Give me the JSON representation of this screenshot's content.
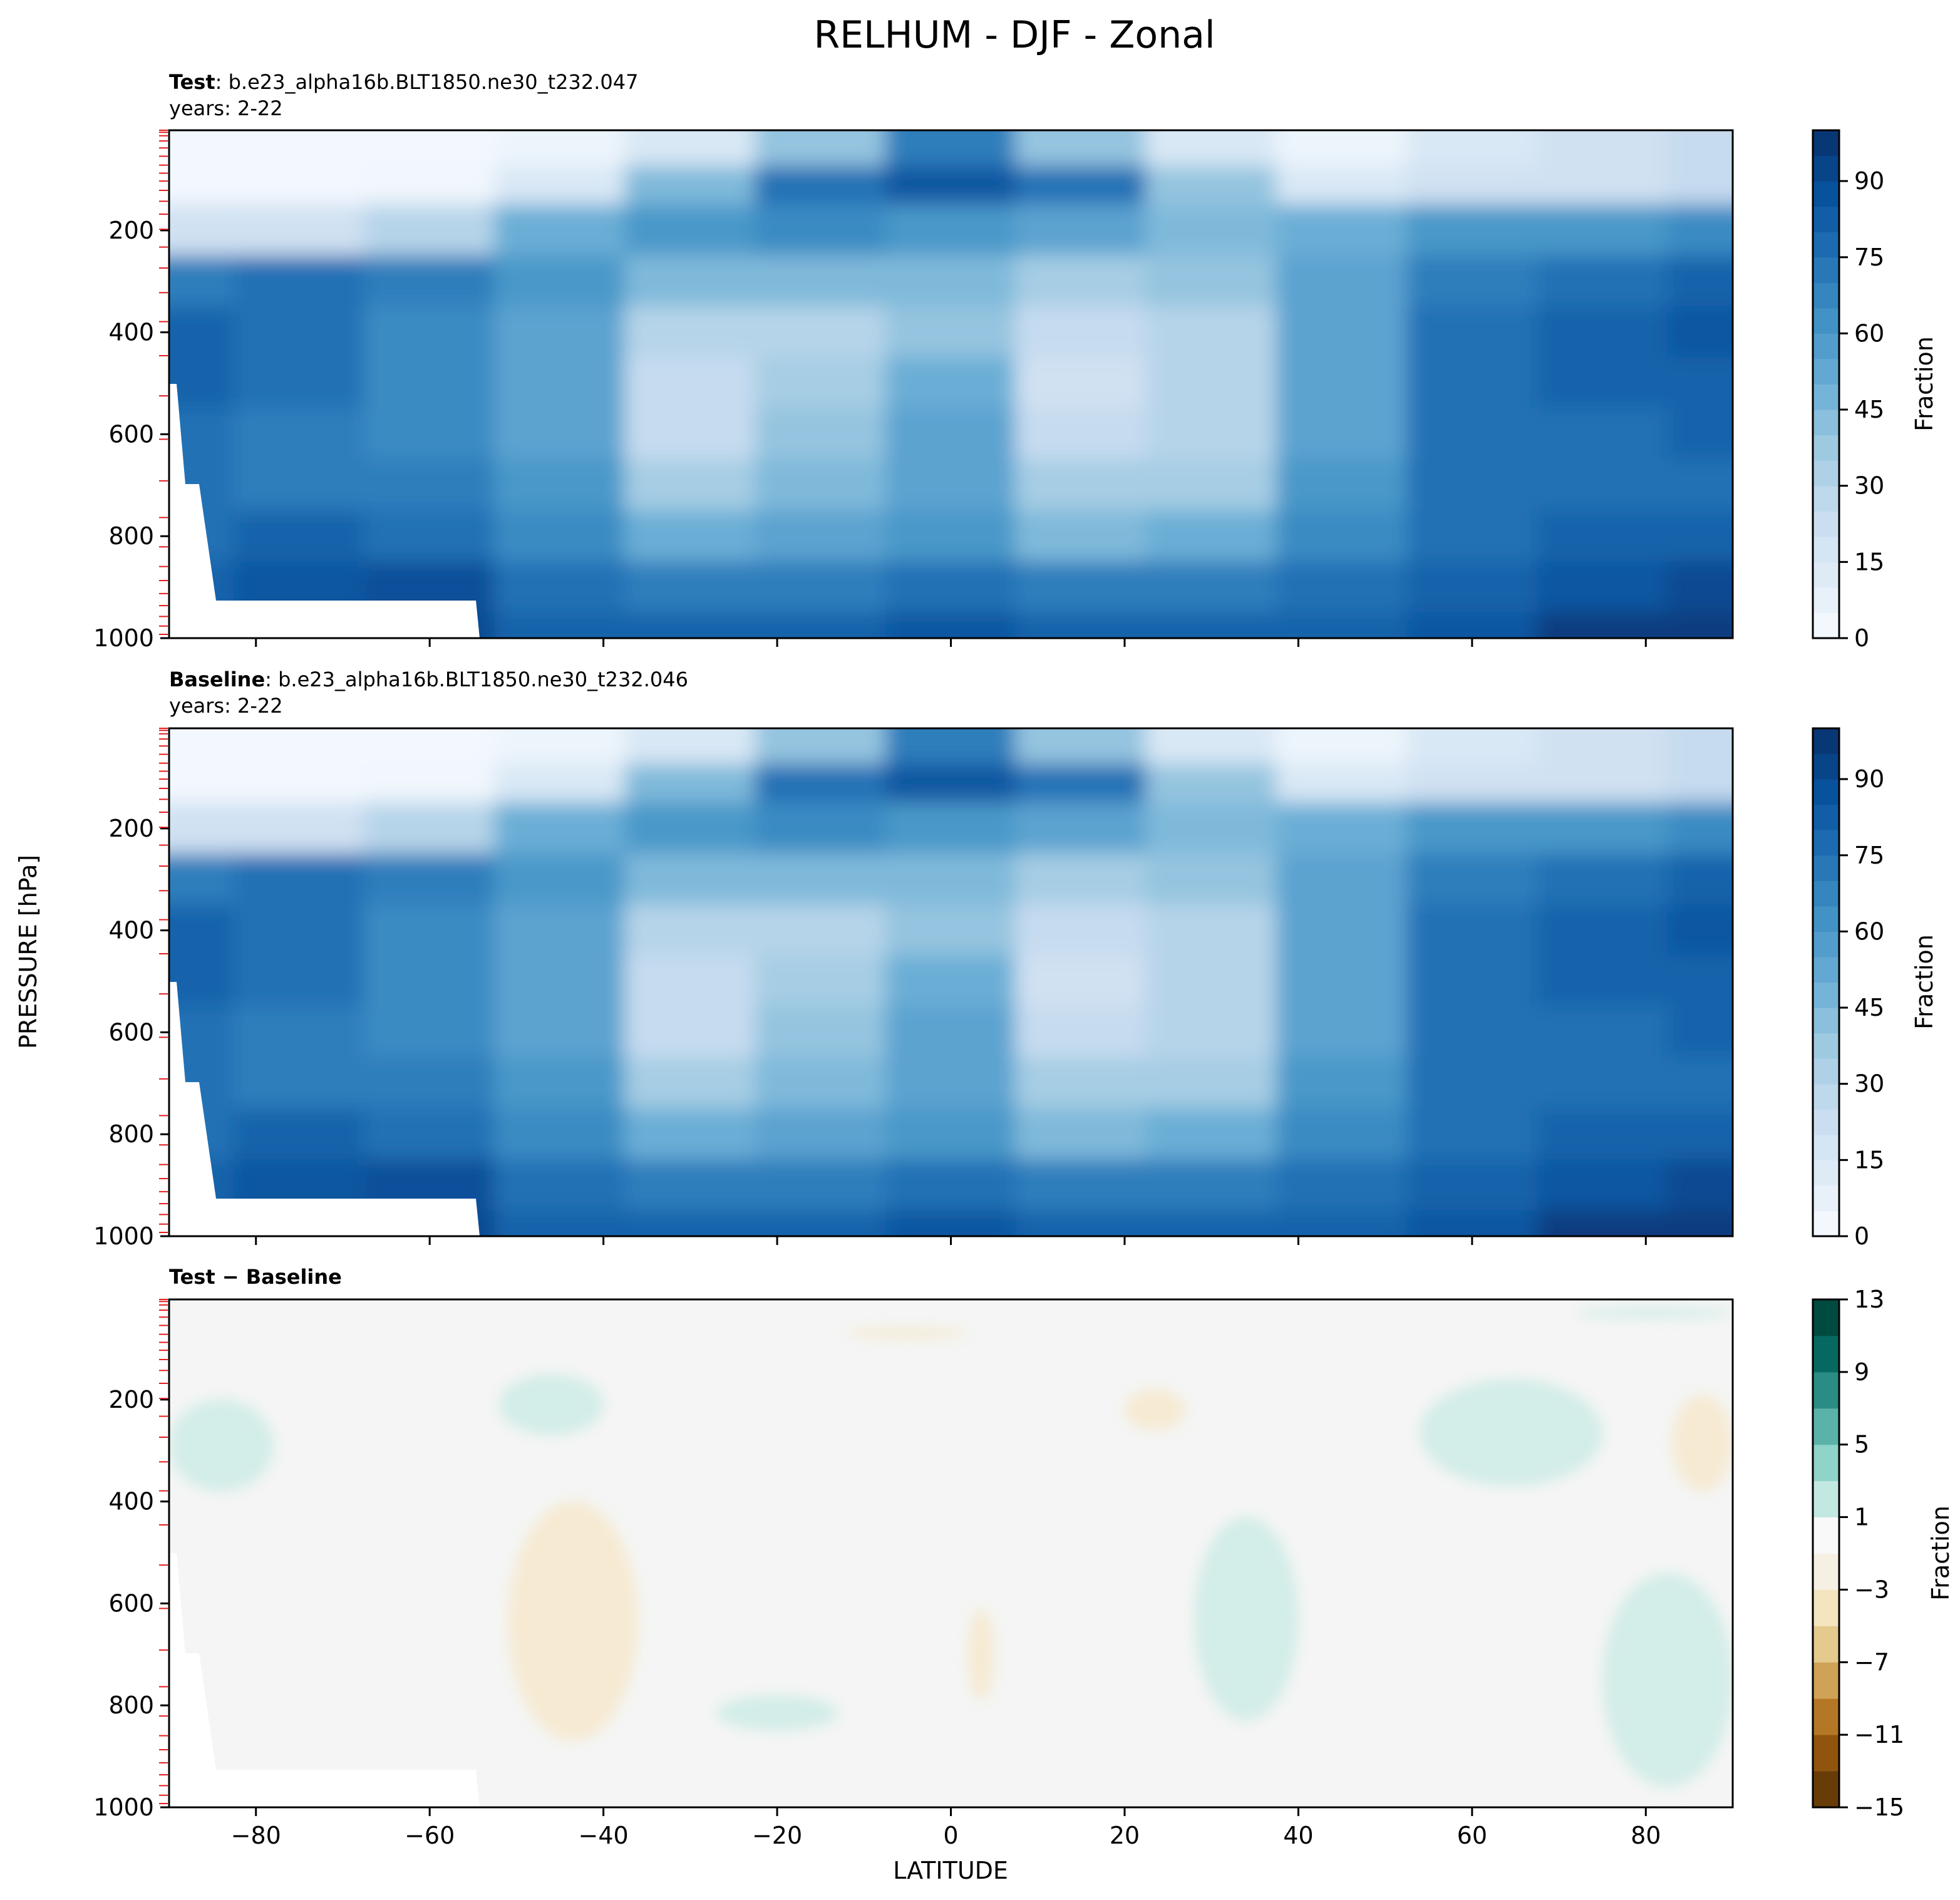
{
  "figure": {
    "title": "RELHUM - DJF - Zonal",
    "xlabel": "LATITUDE",
    "ylabel": "PRESSURE [hPa]"
  },
  "chart_data": [
    {
      "type": "heatmap",
      "panel": "test",
      "title_bold": "Test",
      "title_rest": ": b.e23_alpha16b.BLT1850.ne30_t232.047",
      "subtitle": "years: 2-22",
      "xlim": [
        -90,
        90
      ],
      "ylim": [
        1000,
        3.6
      ],
      "y_inverted": true,
      "xticks": [
        -80,
        -60,
        -40,
        -20,
        0,
        20,
        40,
        60,
        80
      ],
      "yticks": [
        200,
        400,
        600,
        800,
        1000
      ],
      "x_tick_labels_shown": false,
      "colormap": "Blues",
      "colorbar": {
        "label": "Fraction",
        "levels_min": 0,
        "levels_max": 100,
        "step": 5,
        "ticks": [
          0,
          15,
          30,
          45,
          60,
          75,
          90
        ]
      },
      "field_estimate": {
        "latitudes": [
          -90,
          -75,
          -60,
          -45,
          -30,
          -15,
          0,
          15,
          30,
          45,
          60,
          75,
          90
        ],
        "pressures": [
          50,
          100,
          200,
          300,
          400,
          500,
          600,
          700,
          800,
          900,
          1000
        ],
        "values": [
          [
            2,
            2,
            2,
            5,
            15,
            40,
            70,
            40,
            15,
            5,
            15,
            20,
            25
          ],
          [
            2,
            2,
            3,
            15,
            45,
            75,
            85,
            75,
            40,
            15,
            20,
            20,
            25
          ],
          [
            20,
            20,
            30,
            50,
            60,
            65,
            60,
            55,
            45,
            50,
            60,
            60,
            65
          ],
          [
            70,
            75,
            70,
            60,
            45,
            45,
            45,
            35,
            40,
            55,
            70,
            75,
            80
          ],
          [
            80,
            75,
            65,
            55,
            30,
            30,
            40,
            25,
            30,
            55,
            75,
            80,
            85
          ],
          [
            80,
            75,
            65,
            55,
            25,
            35,
            50,
            20,
            30,
            55,
            75,
            80,
            80
          ],
          [
            75,
            70,
            65,
            55,
            25,
            40,
            55,
            25,
            30,
            55,
            75,
            75,
            80
          ],
          [
            75,
            70,
            70,
            60,
            35,
            45,
            55,
            35,
            35,
            60,
            75,
            75,
            75
          ],
          [
            75,
            80,
            75,
            65,
            50,
            55,
            60,
            45,
            50,
            65,
            75,
            80,
            80
          ],
          [
            80,
            85,
            88,
            75,
            70,
            70,
            75,
            70,
            70,
            75,
            80,
            85,
            90
          ],
          [
            85,
            90,
            90,
            80,
            80,
            80,
            85,
            80,
            80,
            80,
            85,
            95,
            95
          ]
        ]
      }
    },
    {
      "type": "heatmap",
      "panel": "baseline",
      "title_bold": "Baseline",
      "title_rest": ": b.e23_alpha16b.BLT1850.ne30_t232.046",
      "subtitle": "years: 2-22",
      "xlim": [
        -90,
        90
      ],
      "ylim": [
        1000,
        3.6
      ],
      "y_inverted": true,
      "xticks": [
        -80,
        -60,
        -40,
        -20,
        0,
        20,
        40,
        60,
        80
      ],
      "yticks": [
        200,
        400,
        600,
        800,
        1000
      ],
      "x_tick_labels_shown": false,
      "colormap": "Blues",
      "colorbar": {
        "label": "Fraction",
        "levels_min": 0,
        "levels_max": 100,
        "step": 5,
        "ticks": [
          0,
          15,
          30,
          45,
          60,
          75,
          90
        ]
      },
      "field_estimate": {
        "latitudes": [
          -90,
          -75,
          -60,
          -45,
          -30,
          -15,
          0,
          15,
          30,
          45,
          60,
          75,
          90
        ],
        "pressures": [
          50,
          100,
          200,
          300,
          400,
          500,
          600,
          700,
          800,
          900,
          1000
        ],
        "values": [
          [
            2,
            2,
            2,
            5,
            15,
            40,
            70,
            40,
            15,
            5,
            15,
            20,
            25
          ],
          [
            2,
            2,
            3,
            15,
            45,
            75,
            85,
            75,
            40,
            15,
            20,
            20,
            25
          ],
          [
            20,
            20,
            30,
            50,
            60,
            65,
            60,
            55,
            45,
            50,
            60,
            60,
            65
          ],
          [
            70,
            75,
            70,
            60,
            45,
            45,
            45,
            35,
            40,
            55,
            70,
            75,
            80
          ],
          [
            80,
            75,
            65,
            55,
            30,
            30,
            40,
            25,
            30,
            55,
            75,
            80,
            85
          ],
          [
            80,
            75,
            65,
            55,
            25,
            35,
            50,
            20,
            30,
            55,
            75,
            80,
            80
          ],
          [
            75,
            70,
            65,
            55,
            25,
            40,
            55,
            25,
            30,
            55,
            75,
            75,
            80
          ],
          [
            75,
            70,
            70,
            60,
            35,
            45,
            55,
            35,
            35,
            60,
            75,
            75,
            75
          ],
          [
            75,
            80,
            75,
            65,
            50,
            55,
            60,
            45,
            50,
            65,
            75,
            80,
            80
          ],
          [
            80,
            85,
            88,
            75,
            70,
            70,
            75,
            70,
            70,
            75,
            80,
            85,
            90
          ],
          [
            85,
            90,
            90,
            80,
            80,
            80,
            85,
            80,
            80,
            80,
            85,
            95,
            95
          ]
        ]
      }
    },
    {
      "type": "heatmap",
      "panel": "difference",
      "title_bold": "Test − Baseline",
      "title_rest": "",
      "subtitle": "",
      "xlim": [
        -90,
        90
      ],
      "ylim": [
        1000,
        3.6
      ],
      "y_inverted": true,
      "xticks": [
        -80,
        -60,
        -40,
        -20,
        0,
        20,
        40,
        60,
        80
      ],
      "yticks": [
        200,
        400,
        600,
        800,
        1000
      ],
      "x_tick_labels_shown": true,
      "colormap": "BrBG",
      "colorbar": {
        "label": "Fraction",
        "levels_min": -15,
        "levels_max": 13,
        "step": 2,
        "ticks": [
          -15,
          -11,
          -7,
          -3,
          1,
          5,
          9,
          13
        ]
      },
      "neutral_range": [
        -1,
        1
      ],
      "anomaly_regions": [
        {
          "sign": "positive",
          "lat_range": [
            -90,
            -78
          ],
          "p_range": [
            200,
            380
          ]
        },
        {
          "sign": "positive",
          "lat_range": [
            -52,
            -40
          ],
          "p_range": [
            150,
            270
          ]
        },
        {
          "sign": "positive",
          "lat_range": [
            -27,
            -13
          ],
          "p_range": [
            780,
            850
          ]
        },
        {
          "sign": "positive",
          "lat_range": [
            28,
            40
          ],
          "p_range": [
            430,
            830
          ]
        },
        {
          "sign": "positive",
          "lat_range": [
            54,
            75
          ],
          "p_range": [
            160,
            370
          ]
        },
        {
          "sign": "positive",
          "lat_range": [
            75,
            90
          ],
          "p_range": [
            540,
            960
          ]
        },
        {
          "sign": "positive",
          "lat_range": [
            72,
            90
          ],
          "p_range": [
            20,
            40
          ]
        },
        {
          "sign": "negative",
          "lat_range": [
            -51,
            -36
          ],
          "p_range": [
            400,
            870
          ]
        },
        {
          "sign": "negative",
          "lat_range": [
            2,
            5
          ],
          "p_range": [
            610,
            790
          ]
        },
        {
          "sign": "negative",
          "lat_range": [
            -12,
            2
          ],
          "p_range": [
            60,
            80
          ]
        },
        {
          "sign": "negative",
          "lat_range": [
            20,
            27
          ],
          "p_range": [
            180,
            260
          ]
        },
        {
          "sign": "negative",
          "lat_range": [
            83,
            90
          ],
          "p_range": [
            190,
            380
          ]
        }
      ]
    }
  ]
}
